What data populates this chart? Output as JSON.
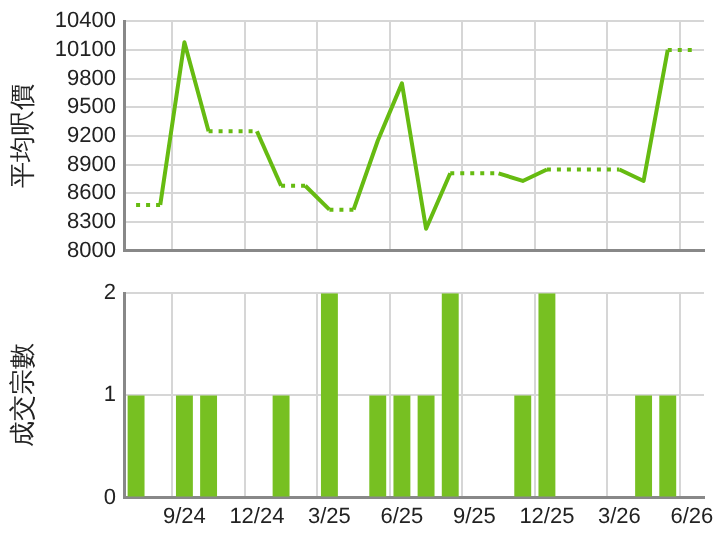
{
  "chart_data": [
    {
      "type": "line",
      "ylabel": "平均呎價",
      "series": [
        {
          "color": "#66bb11",
          "values": [
            8480,
            8480,
            10180,
            9250,
            9250,
            9250,
            8680,
            8680,
            8430,
            8430,
            9150,
            9750,
            8230,
            8810,
            8810,
            8810,
            8730,
            8850,
            8850,
            8850,
            8850,
            8730,
            10100,
            10100
          ]
        }
      ],
      "ylim": [
        8000,
        10400
      ],
      "yticks": [
        8000,
        8300,
        8600,
        8900,
        9200,
        9500,
        9800,
        10100,
        10400
      ],
      "grid": true,
      "tick_labels": "y"
    },
    {
      "type": "bar",
      "ylabel": "成交宗數",
      "categories": [
        null,
        null,
        "9/24",
        null,
        null,
        "12/24",
        null,
        null,
        "3/25",
        null,
        null,
        "6/25",
        null,
        null,
        "9/25",
        null,
        null,
        "12/25",
        null,
        null,
        "3/26",
        null,
        null,
        "6/26"
      ],
      "series": [
        {
          "color": "#77c022",
          "values": [
            1,
            0,
            1,
            1,
            0,
            0,
            1,
            0,
            2,
            0,
            1,
            1,
            1,
            2,
            0,
            0,
            1,
            2,
            0,
            0,
            0,
            1,
            1,
            0
          ]
        }
      ],
      "ylim": [
        0,
        2
      ],
      "yticks": [
        0,
        1,
        2
      ],
      "grid": true
    }
  ]
}
